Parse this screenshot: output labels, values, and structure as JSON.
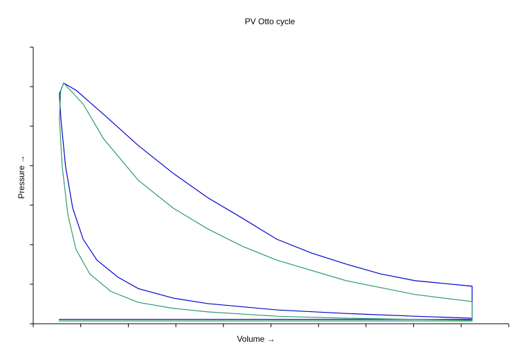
{
  "chart_data": {
    "type": "line",
    "title": "PV Otto cycle",
    "x_label": "Volume →",
    "y_label": "Pressure →",
    "xlim": [
      0,
      10
    ],
    "ylim": [
      0,
      7
    ],
    "xticks": [
      0,
      1,
      2,
      3,
      4,
      5,
      6,
      7,
      8,
      9,
      10
    ],
    "yticks": [
      0,
      1,
      2,
      3,
      4,
      5,
      6,
      7
    ],
    "series": [
      {
        "color": "#0000cc",
        "x": [
          0.54,
          9.23,
          9.23,
          8.03,
          6.58,
          5.12,
          3.67,
          2.94,
          2.21,
          1.78,
          1.34,
          1.05,
          0.83,
          0.68,
          0.58,
          0.55,
          0.64,
          0.9,
          1.48,
          2.21,
          2.94,
          3.67,
          4.4,
          5.12,
          5.85,
          6.58,
          7.31,
          8.03,
          9.23,
          9.23
        ],
        "values": [
          0.11,
          0.11,
          0.14,
          0.19,
          0.26,
          0.35,
          0.51,
          0.65,
          0.89,
          1.18,
          1.61,
          2.14,
          2.93,
          3.98,
          5.21,
          5.82,
          6.09,
          5.91,
          5.3,
          4.51,
          3.81,
          3.19,
          2.67,
          2.14,
          1.79,
          1.51,
          1.26,
          1.09,
          0.95,
          0.11
        ]
      },
      {
        "color": "#2e9a6a",
        "x": [
          0.54,
          9.23,
          9.23,
          8.03,
          6.58,
          5.12,
          3.67,
          2.94,
          2.21,
          1.63,
          1.19,
          0.9,
          0.73,
          0.61,
          0.55,
          0.58,
          0.64,
          1.05,
          1.48,
          2.21,
          2.94,
          3.67,
          4.4,
          5.12,
          6.58,
          8.03,
          9.23,
          9.23
        ],
        "values": [
          0.07,
          0.07,
          0.09,
          0.11,
          0.14,
          0.19,
          0.3,
          0.39,
          0.54,
          0.82,
          1.26,
          1.88,
          2.75,
          3.98,
          5.21,
          5.91,
          6.09,
          5.56,
          4.68,
          3.63,
          2.93,
          2.4,
          1.96,
          1.61,
          1.09,
          0.74,
          0.56,
          0.09
        ]
      }
    ]
  }
}
